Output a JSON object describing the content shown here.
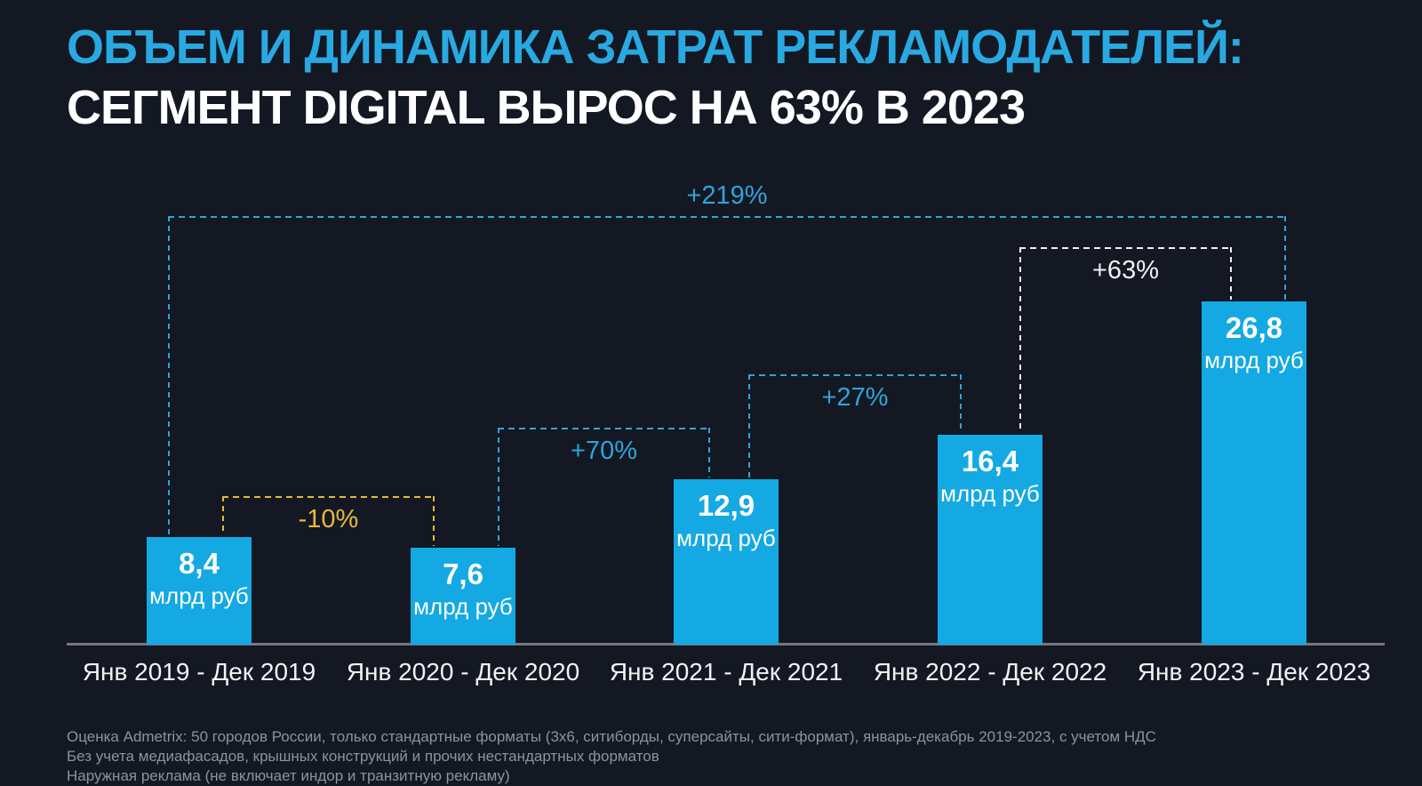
{
  "title": {
    "line1": "ОБЪЕМ И ДИНАМИКА ЗАТРАТ РЕКЛАМОДАТЕЛЕЙ:",
    "line2": "СЕГМЕНТ DIGITAL ВЫРОС НА 63% В 2023"
  },
  "colors": {
    "background": "#131823",
    "bar": "#14a9e2",
    "title_accent": "#29a9e2",
    "bracket_blue": "#2fa4db",
    "bracket_yellow": "#e9b83f",
    "bracket_white": "#f0f0f0",
    "axis_line": "#76777b",
    "footer_text": "#8d929b"
  },
  "chart_data": {
    "type": "bar",
    "title": "ОБЪЕМ И ДИНАМИКА ЗАТРАТ РЕКЛАМОДАТЕЛЕЙ: СЕГМЕНТ DIGITAL ВЫРОС НА 63% В 2023",
    "categories": [
      "Янв 2019 - Дек 2019",
      "Янв 2020 - Дек 2020",
      "Янв 2021 - Дек 2021",
      "Янв 2022 - Дек 2022",
      "Янв 2023 - Дек 2023"
    ],
    "values": [
      8.4,
      7.6,
      12.9,
      16.4,
      26.8
    ],
    "value_labels": [
      "8,4",
      "7,6",
      "12,9",
      "16,4",
      "26,8"
    ],
    "unit": "млрд руб",
    "ylim": [
      0,
      28
    ],
    "grid": false,
    "legend": false,
    "annotations": [
      {
        "label": "-10%",
        "from": 0,
        "to": 1,
        "color": "#e9b83f",
        "label_position": "below"
      },
      {
        "label": "+70%",
        "from": 1,
        "to": 2,
        "color": "#2fa4db",
        "label_position": "below"
      },
      {
        "label": "+27%",
        "from": 2,
        "to": 3,
        "color": "#2fa4db",
        "label_position": "below"
      },
      {
        "label": "+63%",
        "from": 3,
        "to": 4,
        "color": "#f0f0f0",
        "label_position": "below"
      },
      {
        "label": "+219%",
        "from": 0,
        "to": 4,
        "color": "#2fa4db",
        "label_position": "above"
      }
    ]
  },
  "footer": {
    "notes": [
      "Оценка Admetrix: 50 городов России, только стандартные форматы (3х6, ситиборды, суперсайты, сити-формат), январь-декабрь 2019-2023, с учетом НДС",
      "Без учета медиафасадов, крышных конструкций и прочих нестандартных форматов",
      "Наружная реклама (не включает индор и транзитную рекламу)"
    ]
  }
}
